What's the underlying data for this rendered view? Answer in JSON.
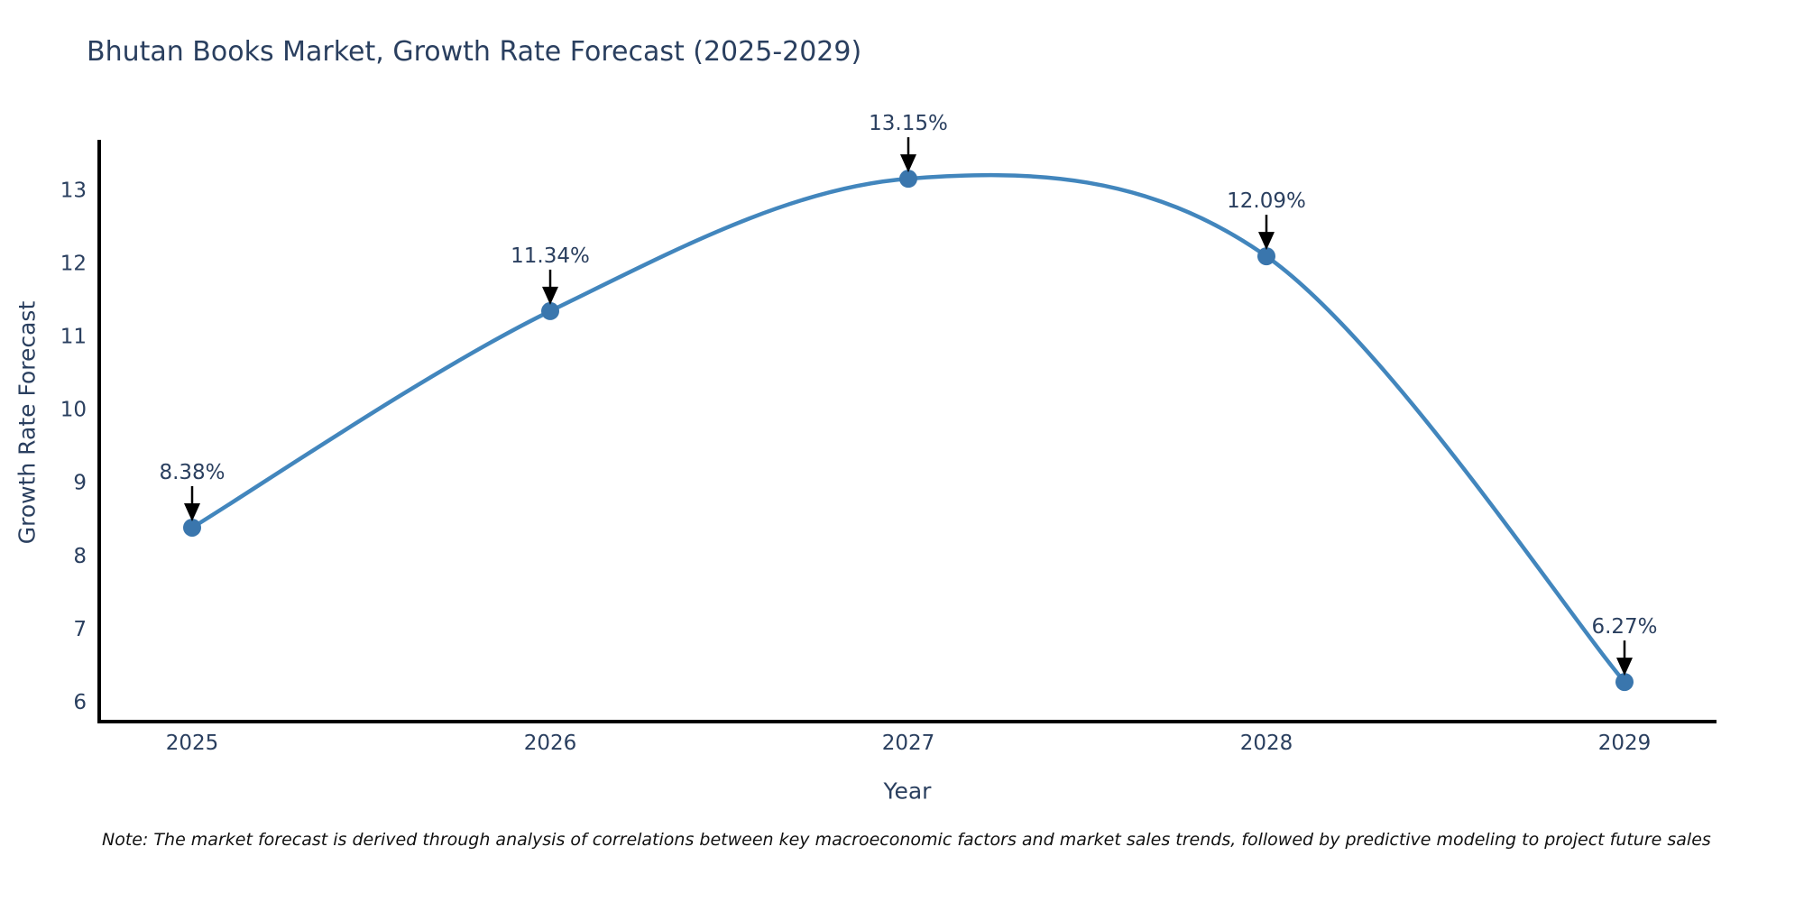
{
  "title": "Bhutan Books Market, Growth Rate Forecast (2025-2029)",
  "note": "Note: The market forecast is derived through analysis of correlations between key macroeconomic factors and market sales trends, followed by predictive modeling to project future sales",
  "chart_data": {
    "type": "line",
    "title": "Bhutan Books Market, Growth Rate Forecast (2025-2029)",
    "xlabel": "Year",
    "ylabel": "Growth Rate Forecast",
    "x": [
      2025,
      2026,
      2027,
      2028,
      2029
    ],
    "series": [
      {
        "name": "Growth Rate Forecast",
        "values": [
          8.38,
          11.34,
          13.15,
          12.09,
          6.27
        ],
        "point_labels": [
          "8.38%",
          "11.34%",
          "13.15%",
          "12.09%",
          "6.27%"
        ]
      }
    ],
    "line_shape": "spline",
    "markers": true,
    "annotations_arrows": true,
    "xticks": [
      "2025",
      "2026",
      "2027",
      "2028",
      "2029"
    ],
    "yticks": [
      6,
      7,
      8,
      9,
      10,
      11,
      12,
      13
    ],
    "ylim": [
      5.73,
      13.68
    ],
    "grid": false,
    "legend": "none",
    "colors": {
      "line": "#4286bd",
      "marker": "#3a76ad",
      "axis": "#000000",
      "tick_text": "#2a3f5f",
      "annotation_text": "#2a3f5f",
      "arrow": "#000000",
      "background": "#ffffff"
    }
  }
}
